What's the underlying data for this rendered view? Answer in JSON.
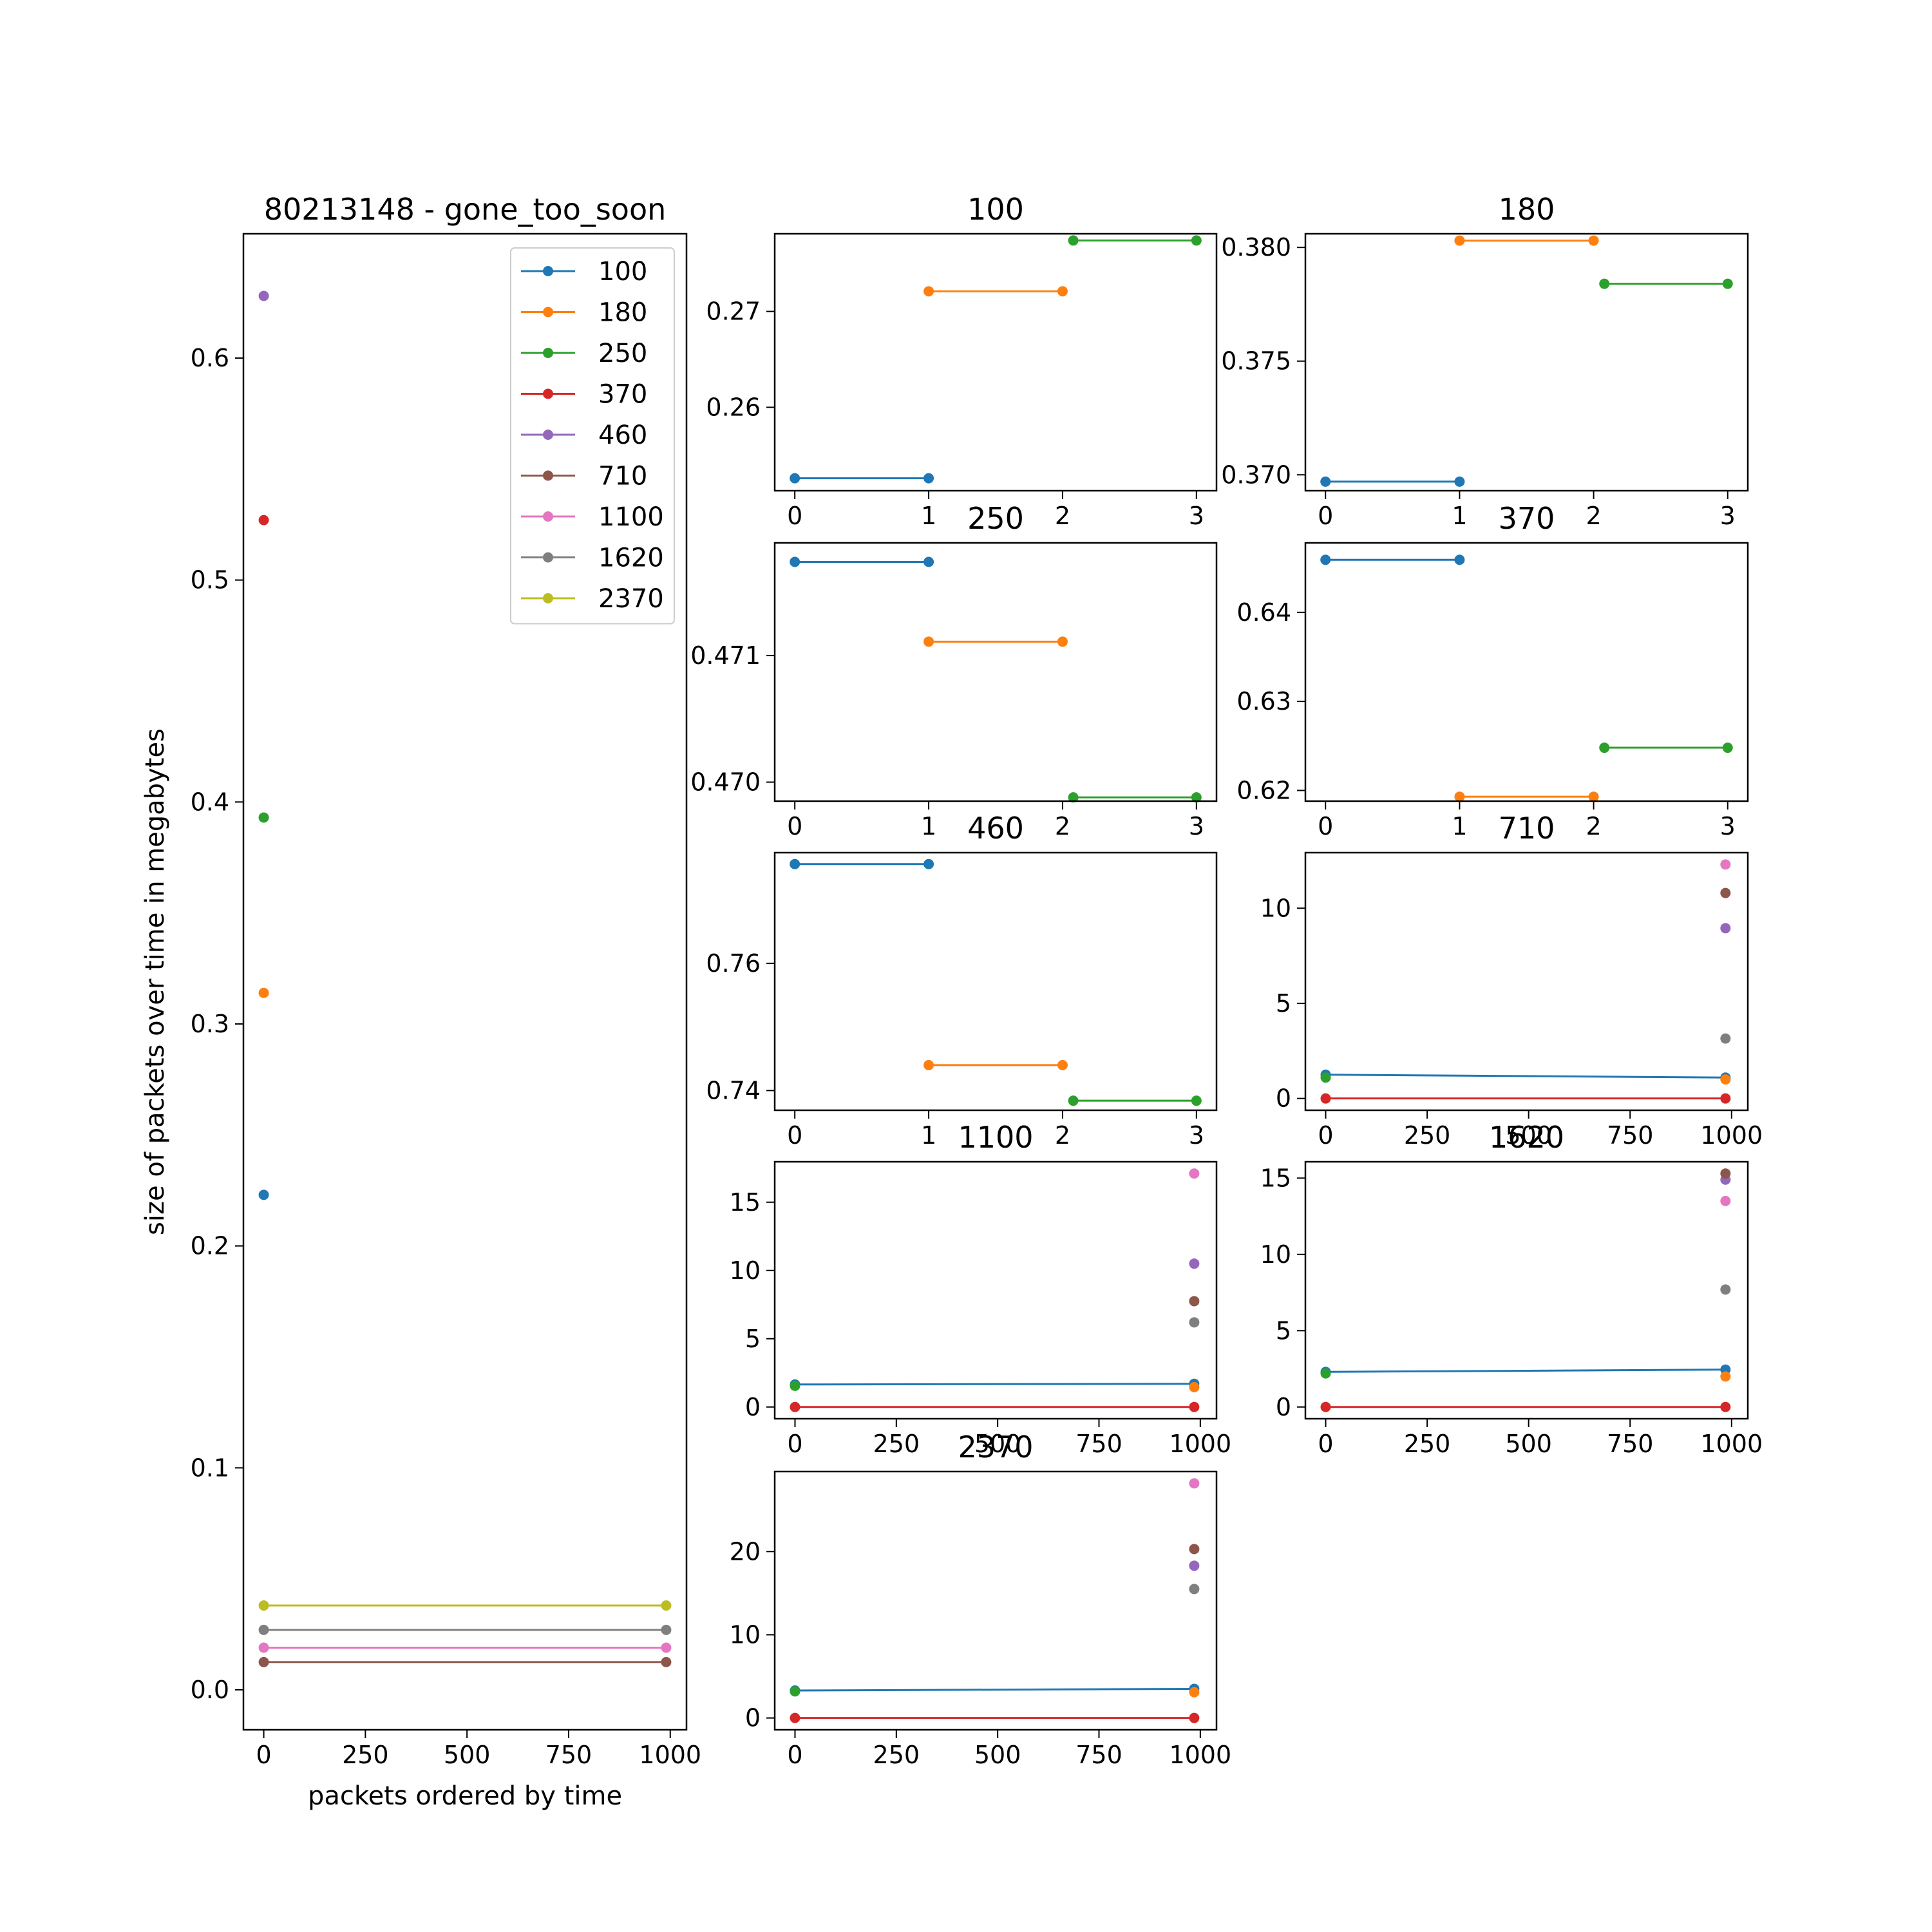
{
  "palette": {
    "100": "#1f77b4",
    "180": "#ff7f0e",
    "250": "#2ca02c",
    "370": "#d62728",
    "460": "#9467bd",
    "710": "#8c564b",
    "1100": "#e377c2",
    "1620": "#7f7f7f",
    "2370": "#bcbd22"
  },
  "chart_data": [
    {
      "id": "main",
      "type": "scatter",
      "title": "80213148 - gone_too_soon",
      "xlabel": "packets ordered by time",
      "ylabel": "size of packets over time in megabytes",
      "xlim": [
        -50,
        1040
      ],
      "ylim": [
        -0.018,
        0.656
      ],
      "xticks": [
        0,
        250,
        500,
        750,
        1000
      ],
      "yticks": [
        0.0,
        0.1,
        0.2,
        0.3,
        0.4,
        0.5,
        0.6
      ],
      "ytick_format": 1,
      "legend": {
        "position": "top-right",
        "entries": [
          "100",
          "180",
          "250",
          "370",
          "460",
          "710",
          "1100",
          "1620",
          "2370"
        ]
      },
      "series": [
        {
          "name": "100",
          "points": [
            [
              0,
              0.223
            ]
          ]
        },
        {
          "name": "180",
          "points": [
            [
              0,
              0.314
            ]
          ]
        },
        {
          "name": "250",
          "points": [
            [
              0,
              0.393
            ]
          ]
        },
        {
          "name": "370",
          "points": [
            [
              0,
              0.527
            ]
          ]
        },
        {
          "name": "460",
          "points": [
            [
              0,
              0.628
            ]
          ]
        },
        {
          "name": "710",
          "points": [
            [
              0,
              0.0125
            ],
            [
              990,
              0.0125
            ]
          ]
        },
        {
          "name": "1100",
          "points": [
            [
              0,
              0.019
            ],
            [
              990,
              0.019
            ]
          ]
        },
        {
          "name": "1620",
          "points": [
            [
              0,
              0.027
            ],
            [
              990,
              0.027
            ]
          ]
        },
        {
          "name": "2370",
          "points": [
            [
              0,
              0.038
            ],
            [
              990,
              0.038
            ]
          ]
        }
      ]
    },
    {
      "id": "p100",
      "type": "line",
      "title": "100",
      "xlim": [
        -0.15,
        3.15
      ],
      "ylim": [
        0.2513,
        0.2781
      ],
      "xticks": [
        0,
        1,
        2,
        3
      ],
      "yticks": [
        0.26,
        0.27
      ],
      "ytick_format": 2,
      "series": [
        {
          "color_key": "100",
          "points": [
            [
              0,
              0.2526
            ],
            [
              1,
              0.2526
            ]
          ]
        },
        {
          "color_key": "180",
          "points": [
            [
              1,
              0.2721
            ],
            [
              2,
              0.2721
            ]
          ]
        },
        {
          "color_key": "250",
          "points": [
            [
              2.08,
              0.2774
            ],
            [
              3,
              0.2774
            ]
          ]
        }
      ]
    },
    {
      "id": "p180",
      "type": "line",
      "title": "180",
      "xlim": [
        -0.15,
        3.15
      ],
      "ylim": [
        0.3693,
        0.3806
      ],
      "xticks": [
        0,
        1,
        2,
        3
      ],
      "yticks": [
        0.37,
        0.375,
        0.38
      ],
      "ytick_format": 3,
      "series": [
        {
          "color_key": "100",
          "points": [
            [
              0,
              0.3697
            ],
            [
              1,
              0.3697
            ]
          ]
        },
        {
          "color_key": "180",
          "points": [
            [
              1,
              0.3803
            ],
            [
              2,
              0.3803
            ]
          ]
        },
        {
          "color_key": "250",
          "points": [
            [
              2.08,
              0.3784
            ],
            [
              3,
              0.3784
            ]
          ]
        }
      ]
    },
    {
      "id": "p250",
      "type": "line",
      "title": "250",
      "xlim": [
        -0.15,
        3.15
      ],
      "ylim": [
        0.46985,
        0.47189
      ],
      "xticks": [
        0,
        1,
        2,
        3
      ],
      "yticks": [
        0.47,
        0.471
      ],
      "ytick_format": 3,
      "series": [
        {
          "color_key": "100",
          "points": [
            [
              0,
              0.47174
            ],
            [
              1,
              0.47174
            ]
          ]
        },
        {
          "color_key": "180",
          "points": [
            [
              1,
              0.47111
            ],
            [
              2,
              0.47111
            ]
          ]
        },
        {
          "color_key": "250",
          "points": [
            [
              2.08,
              0.46988
            ],
            [
              3,
              0.46988
            ]
          ]
        }
      ]
    },
    {
      "id": "p370",
      "type": "line",
      "title": "370",
      "xlim": [
        -0.15,
        3.15
      ],
      "ylim": [
        0.6188,
        0.6478
      ],
      "xticks": [
        0,
        1,
        2,
        3
      ],
      "yticks": [
        0.62,
        0.63,
        0.64
      ],
      "ytick_format": 2,
      "series": [
        {
          "color_key": "100",
          "points": [
            [
              0,
              0.6459
            ],
            [
              1,
              0.6459
            ]
          ]
        },
        {
          "color_key": "180",
          "points": [
            [
              1,
              0.6193
            ],
            [
              2,
              0.6193
            ]
          ]
        },
        {
          "color_key": "250",
          "points": [
            [
              2.08,
              0.6248
            ],
            [
              3,
              0.6248
            ]
          ]
        }
      ]
    },
    {
      "id": "p460",
      "type": "line",
      "title": "460",
      "xlim": [
        -0.15,
        3.15
      ],
      "ylim": [
        0.7369,
        0.7774
      ],
      "xticks": [
        0,
        1,
        2,
        3
      ],
      "yticks": [
        0.74,
        0.76
      ],
      "ytick_format": 2,
      "series": [
        {
          "color_key": "100",
          "points": [
            [
              0,
              0.7756
            ],
            [
              1,
              0.7756
            ]
          ]
        },
        {
          "color_key": "180",
          "points": [
            [
              1,
              0.744
            ],
            [
              2,
              0.744
            ]
          ]
        },
        {
          "color_key": "250",
          "points": [
            [
              2.08,
              0.7384
            ],
            [
              3,
              0.7384
            ]
          ]
        }
      ]
    },
    {
      "id": "p710",
      "type": "scatter",
      "title": "710",
      "xlim": [
        -50,
        1040
      ],
      "ylim": [
        -0.62,
        12.92
      ],
      "xticks": [
        0,
        250,
        500,
        750,
        1000
      ],
      "xtick_labels": [
        "0",
        "250",
        "500",
        "750",
        "1000"
      ],
      "yticks": [
        0,
        5,
        10
      ],
      "ytick_format": 0,
      "series": [
        {
          "color_key": "100",
          "points": [
            [
              0,
              1.25
            ],
            [
              985,
              1.1
            ]
          ]
        },
        {
          "color_key": "180",
          "points": [
            [
              985,
              1.0
            ]
          ]
        },
        {
          "color_key": "250",
          "points": [
            [
              0,
              1.1
            ]
          ]
        },
        {
          "color_key": "370",
          "points": [
            [
              0,
              0.0
            ],
            [
              985,
              0.0
            ]
          ]
        },
        {
          "color_key": "460",
          "points": [
            [
              985,
              8.95
            ]
          ]
        },
        {
          "color_key": "710",
          "points": [
            [
              985,
              10.8
            ]
          ]
        },
        {
          "color_key": "1100",
          "points": [
            [
              985,
              12.3
            ]
          ]
        },
        {
          "color_key": "1620",
          "points": [
            [
              985,
              3.15
            ]
          ]
        }
      ]
    },
    {
      "id": "p1100",
      "type": "scatter",
      "title": "1100",
      "xlim": [
        -50,
        1040
      ],
      "ylim": [
        -0.86,
        17.96
      ],
      "xticks": [
        0,
        250,
        500,
        750,
        1000
      ],
      "xtick_labels": [
        "0",
        "250",
        "500",
        "750",
        "1000"
      ],
      "yticks": [
        0,
        5,
        10,
        15
      ],
      "ytick_format": 0,
      "series": [
        {
          "color_key": "100",
          "points": [
            [
              0,
              1.65
            ],
            [
              985,
              1.7
            ]
          ]
        },
        {
          "color_key": "180",
          "points": [
            [
              985,
              1.45
            ]
          ]
        },
        {
          "color_key": "250",
          "points": [
            [
              0,
              1.55
            ]
          ]
        },
        {
          "color_key": "370",
          "points": [
            [
              0,
              0.0
            ],
            [
              985,
              0.0
            ]
          ]
        },
        {
          "color_key": "460",
          "points": [
            [
              985,
              10.5
            ]
          ]
        },
        {
          "color_key": "710",
          "points": [
            [
              985,
              7.75
            ]
          ]
        },
        {
          "color_key": "1100",
          "points": [
            [
              985,
              17.1
            ]
          ]
        },
        {
          "color_key": "1620",
          "points": [
            [
              985,
              6.2
            ]
          ]
        }
      ]
    },
    {
      "id": "p1620",
      "type": "scatter",
      "title": "1620",
      "xlim": [
        -50,
        1040
      ],
      "ylim": [
        -0.77,
        16.07
      ],
      "xticks": [
        0,
        250,
        500,
        750,
        1000
      ],
      "xtick_labels": [
        "0",
        "250",
        "500",
        "750",
        "1000"
      ],
      "yticks": [
        0,
        5,
        10,
        15
      ],
      "ytick_format": 0,
      "series": [
        {
          "color_key": "100",
          "points": [
            [
              0,
              2.3
            ],
            [
              985,
              2.45
            ]
          ]
        },
        {
          "color_key": "180",
          "points": [
            [
              985,
              2.0
            ]
          ]
        },
        {
          "color_key": "250",
          "points": [
            [
              0,
              2.2
            ]
          ]
        },
        {
          "color_key": "370",
          "points": [
            [
              0,
              0.0
            ],
            [
              985,
              0.0
            ]
          ]
        },
        {
          "color_key": "460",
          "points": [
            [
              985,
              14.9
            ]
          ]
        },
        {
          "color_key": "710",
          "points": [
            [
              985,
              15.3
            ]
          ]
        },
        {
          "color_key": "1100",
          "points": [
            [
              985,
              13.5
            ]
          ]
        },
        {
          "color_key": "1620",
          "points": [
            [
              985,
              7.7
            ]
          ]
        }
      ]
    },
    {
      "id": "p2370",
      "type": "scatter",
      "title": "2370",
      "xlim": [
        -50,
        1040
      ],
      "ylim": [
        -1.42,
        29.62
      ],
      "xticks": [
        0,
        250,
        500,
        750,
        1000
      ],
      "xtick_labels": [
        "0",
        "250",
        "500",
        "750",
        "1000"
      ],
      "yticks": [
        0,
        10,
        20
      ],
      "ytick_format": 0,
      "series": [
        {
          "color_key": "100",
          "points": [
            [
              0,
              3.3
            ],
            [
              985,
              3.5
            ]
          ]
        },
        {
          "color_key": "180",
          "points": [
            [
              985,
              3.1
            ]
          ]
        },
        {
          "color_key": "250",
          "points": [
            [
              0,
              3.2
            ]
          ]
        },
        {
          "color_key": "370",
          "points": [
            [
              0,
              0.0
            ],
            [
              985,
              0.0
            ]
          ]
        },
        {
          "color_key": "460",
          "points": [
            [
              985,
              18.3
            ]
          ]
        },
        {
          "color_key": "710",
          "points": [
            [
              985,
              20.3
            ]
          ]
        },
        {
          "color_key": "1100",
          "points": [
            [
              985,
              28.2
            ]
          ]
        },
        {
          "color_key": "1620",
          "points": [
            [
              985,
              15.5
            ]
          ]
        }
      ]
    }
  ]
}
